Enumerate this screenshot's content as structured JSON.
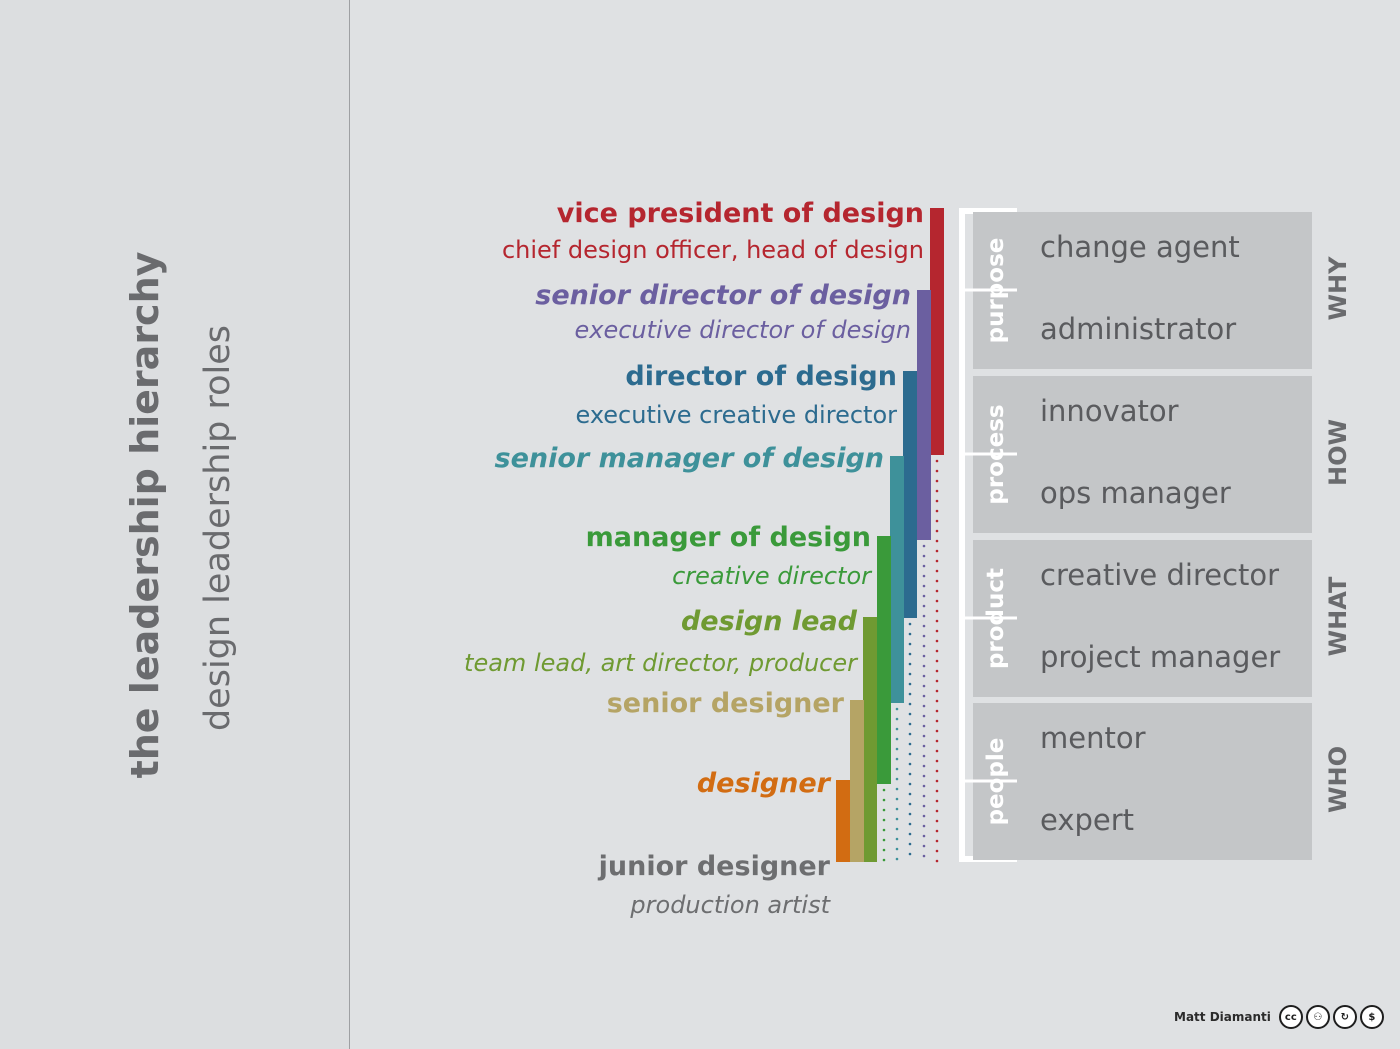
{
  "title": "the leadership hierarchy",
  "subtitle": "design leadership roles",
  "credit": {
    "author": "Matt Diamanti",
    "license_icons": [
      "cc-icon",
      "by-attribution-icon",
      "sa-share-alike-icon",
      "nc-noncommercial-icon"
    ],
    "license_glyphs": [
      "cc",
      "⚇",
      "↻",
      "$"
    ]
  },
  "colors": {
    "background": "#dfe1e3",
    "box": "#c4c6c8",
    "text_grey": "#6a6b6e"
  },
  "roles": [
    {
      "id": "vp",
      "title": "vice president of design",
      "aka": "chief design officer, head of design",
      "color": "#b5262f",
      "italic": false,
      "aka_italic": false
    },
    {
      "id": "sr-director",
      "title": "senior director of design",
      "aka": "executive director of design",
      "color": "#6b5fa0",
      "italic": true,
      "aka_italic": true
    },
    {
      "id": "director",
      "title": "director of design",
      "aka": "executive creative director",
      "color": "#2c6b8f",
      "italic": false,
      "aka_italic": false
    },
    {
      "id": "sr-manager",
      "title": "senior manager of design",
      "aka": "",
      "color": "#3e919a",
      "italic": true,
      "aka_italic": false
    },
    {
      "id": "manager",
      "title": "manager of design",
      "aka": "creative director",
      "color": "#3a9a3a",
      "italic": false,
      "aka_italic": true
    },
    {
      "id": "lead",
      "title": "design lead",
      "aka": "team lead, art director, producer",
      "color": "#6f9a32",
      "italic": true,
      "aka_italic": true
    },
    {
      "id": "sr-designer",
      "title": "senior designer",
      "aka": "",
      "color": "#b5a465",
      "italic": false,
      "aka_italic": false
    },
    {
      "id": "designer",
      "title": "designer",
      "aka": "",
      "color": "#d26c12",
      "italic": true,
      "aka_italic": false
    },
    {
      "id": "junior",
      "title": "junior designer",
      "aka": "production artist",
      "color": "#6d6e70",
      "italic": false,
      "aka_italic": true
    }
  ],
  "categories": [
    {
      "label": "purpose",
      "question": "WHY",
      "roles": [
        "change agent",
        "administrator"
      ]
    },
    {
      "label": "process",
      "question": "HOW",
      "roles": [
        "innovator",
        "ops manager"
      ]
    },
    {
      "label": "product",
      "question": "WHAT",
      "roles": [
        "creative director",
        "project manager"
      ]
    },
    {
      "label": "people",
      "question": "WHO",
      "roles": [
        "mentor",
        "expert"
      ]
    }
  ]
}
